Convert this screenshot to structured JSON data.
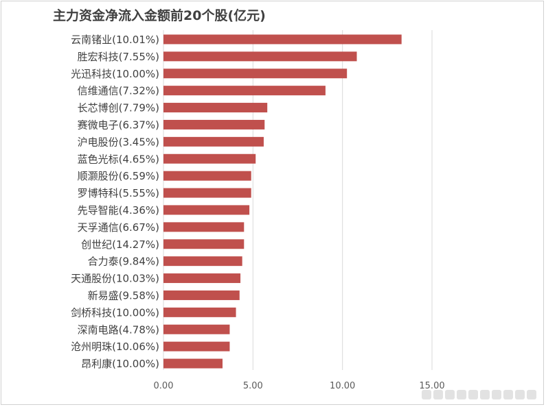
{
  "chart_data": {
    "type": "bar",
    "orientation": "horizontal",
    "title": "主力资金净流入金额前20个股(亿元)",
    "categories": [
      "云南锗业(10.01%)",
      "胜宏科技(7.55%)",
      "光迅科技(10.00%)",
      "信维通信(7.32%)",
      "长芯博创(7.79%)",
      "赛微电子(6.37%)",
      "沪电股份(3.45%)",
      "蓝色光标(4.65%)",
      "顺灏股份(6.59%)",
      "罗博特科(5.55%)",
      "先导智能(4.36%)",
      "天孚通信(6.67%)",
      "创世纪(14.27%)",
      "合力泰(9.84%)",
      "天通股份(10.03%)",
      "新易盛(9.58%)",
      "剑桥科技(10.00%)",
      "深南电路(4.78%)",
      "沧州明珠(10.06%)",
      "昂利康(10.00%)"
    ],
    "values": [
      13.3,
      10.8,
      10.25,
      9.05,
      5.8,
      5.65,
      5.6,
      5.15,
      4.9,
      4.9,
      4.8,
      4.5,
      4.5,
      4.4,
      4.3,
      4.25,
      4.05,
      3.7,
      3.7,
      3.3
    ],
    "x_ticks": [
      "0.00",
      "5.00",
      "10.00",
      "15.00"
    ],
    "xlim": [
      0,
      15
    ],
    "grid": "vertical",
    "bar_color": "#c0504d"
  }
}
